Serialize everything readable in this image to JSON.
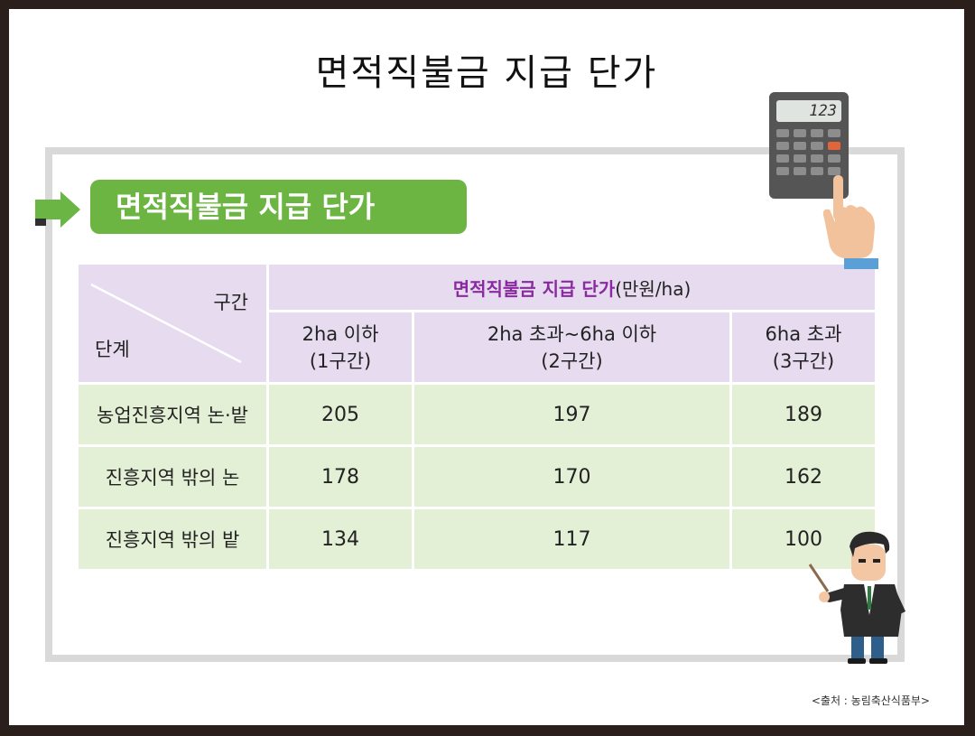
{
  "page_title": "면적직불금 지급 단가",
  "section_label": "면적직불금 지급 단가",
  "table": {
    "corner_top": "구간",
    "corner_bottom": "단계",
    "main_header_accent": "면적직불금 지급 단가",
    "main_header_unit": "(만원/ha)",
    "columns": [
      {
        "line1": "2ha 이하",
        "line2": "(1구간)"
      },
      {
        "line1": "2ha 초과~6ha 이하",
        "line2": "(2구간)"
      },
      {
        "line1": "6ha 초과",
        "line2": "(3구간)"
      }
    ],
    "rows": [
      {
        "label": "농업진흥지역 논·밭",
        "values": [
          "205",
          "197",
          "189"
        ]
      },
      {
        "label": "진흥지역 밖의 논",
        "values": [
          "178",
          "170",
          "162"
        ]
      },
      {
        "label": "진흥지역 밖의 밭",
        "values": [
          "134",
          "117",
          "100"
        ]
      }
    ]
  },
  "calculator_display": "123",
  "source": "<출처 : 농림축산식품부>",
  "colors": {
    "accent_green": "#6cb543",
    "header_purple": "#e6dbef",
    "row_green": "#e3f0d6",
    "header_text_accent": "#8a2aa0"
  },
  "icons": [
    "arrow-right-icon",
    "calculator-icon",
    "pointing-hand-icon",
    "businessman-icon"
  ]
}
